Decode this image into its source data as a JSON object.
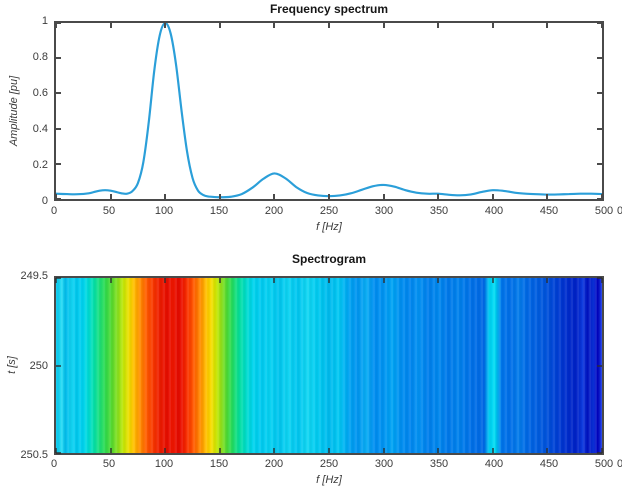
{
  "figure": {
    "background": "#ffffff",
    "axis_color": "#4a4a4a",
    "tick_label_color": "#3c3c3c",
    "title_color": "#161616"
  },
  "chart_data": [
    {
      "type": "line",
      "title": "Frequency spectrum",
      "xlabel": "f [Hz]",
      "ylabel": "Amplitude [pu]",
      "xlim": [
        0,
        500
      ],
      "ylim": [
        0,
        1
      ],
      "y_direction": "up",
      "grid": false,
      "legend": false,
      "xticks": [
        0,
        50,
        100,
        150,
        200,
        250,
        300,
        350,
        400,
        450,
        500
      ],
      "yticks": [
        0,
        0.2,
        0.4,
        0.6,
        0.8,
        1
      ],
      "line_color": "#2b9fd9",
      "edge_clipped_label": "0",
      "x": [
        0,
        10,
        20,
        30,
        35,
        40,
        45,
        50,
        55,
        60,
        65,
        70,
        75,
        80,
        85,
        90,
        95,
        100,
        105,
        110,
        115,
        120,
        125,
        130,
        135,
        140,
        150,
        160,
        170,
        180,
        190,
        200,
        210,
        220,
        230,
        240,
        250,
        260,
        270,
        280,
        290,
        300,
        310,
        320,
        330,
        340,
        350,
        360,
        370,
        380,
        390,
        400,
        410,
        420,
        430,
        440,
        450,
        460,
        470,
        480,
        490,
        500
      ],
      "y": [
        0.03,
        0.028,
        0.027,
        0.032,
        0.04,
        0.047,
        0.05,
        0.047,
        0.04,
        0.032,
        0.03,
        0.045,
        0.09,
        0.21,
        0.44,
        0.73,
        0.93,
        1.0,
        0.94,
        0.76,
        0.5,
        0.27,
        0.12,
        0.048,
        0.022,
        0.014,
        0.01,
        0.013,
        0.028,
        0.065,
        0.115,
        0.145,
        0.118,
        0.068,
        0.034,
        0.02,
        0.016,
        0.02,
        0.032,
        0.052,
        0.072,
        0.08,
        0.07,
        0.05,
        0.036,
        0.03,
        0.03,
        0.024,
        0.021,
        0.026,
        0.04,
        0.05,
        0.046,
        0.036,
        0.03,
        0.027,
        0.025,
        0.026,
        0.028,
        0.03,
        0.03,
        0.028
      ]
    },
    {
      "type": "heatmap",
      "title": "Spectrogram",
      "xlabel": "f [Hz]",
      "ylabel": "t [s]",
      "xlim": [
        0,
        500
      ],
      "ylim": [
        249.5,
        250.5
      ],
      "y_direction": "down",
      "colormap": "jet",
      "note": "vertical color bands constant over the whole time axis",
      "xticks": [
        0,
        50,
        100,
        150,
        200,
        250,
        300,
        350,
        400,
        450,
        500
      ],
      "yticks": [
        249.5,
        250,
        250.5
      ],
      "edge_clipped_label": "0",
      "bands": [
        {
          "f": 0,
          "color": "#00c6ee"
        },
        {
          "f": 5,
          "color": "#28dcf4"
        },
        {
          "f": 9,
          "color": "#00baea"
        },
        {
          "f": 14,
          "color": "#12d4f2"
        },
        {
          "f": 19,
          "color": "#00c8ee"
        },
        {
          "f": 25,
          "color": "#00d4f0"
        },
        {
          "f": 30,
          "color": "#00dcd2"
        },
        {
          "f": 35,
          "color": "#06e0a6"
        },
        {
          "f": 40,
          "color": "#1ce07a"
        },
        {
          "f": 45,
          "color": "#2eda4e"
        },
        {
          "f": 51,
          "color": "#55da30"
        },
        {
          "f": 57,
          "color": "#8ee01c"
        },
        {
          "f": 62,
          "color": "#c6e706"
        },
        {
          "f": 67,
          "color": "#f0dc00"
        },
        {
          "f": 71,
          "color": "#ffc000"
        },
        {
          "f": 75,
          "color": "#ff9e00"
        },
        {
          "f": 79,
          "color": "#ff7c00"
        },
        {
          "f": 83,
          "color": "#ff5a00"
        },
        {
          "f": 88,
          "color": "#f93c00"
        },
        {
          "f": 93,
          "color": "#f02400"
        },
        {
          "f": 98,
          "color": "#e91400"
        },
        {
          "f": 103,
          "color": "#e60c00"
        },
        {
          "f": 107,
          "color": "#f01800"
        },
        {
          "f": 111,
          "color": "#e30a00"
        },
        {
          "f": 115,
          "color": "#eb1000"
        },
        {
          "f": 119,
          "color": "#f62a00"
        },
        {
          "f": 124,
          "color": "#ff4a00"
        },
        {
          "f": 129,
          "color": "#ff7200"
        },
        {
          "f": 134,
          "color": "#ff9c00"
        },
        {
          "f": 138,
          "color": "#ffc400"
        },
        {
          "f": 142,
          "color": "#f8dc00"
        },
        {
          "f": 147,
          "color": "#c8e704"
        },
        {
          "f": 152,
          "color": "#8adf1e"
        },
        {
          "f": 157,
          "color": "#48da38"
        },
        {
          "f": 162,
          "color": "#20dc64"
        },
        {
          "f": 168,
          "color": "#04df9e"
        },
        {
          "f": 174,
          "color": "#00dcca"
        },
        {
          "f": 180,
          "color": "#00d4ec"
        },
        {
          "f": 188,
          "color": "#00caf0"
        },
        {
          "f": 196,
          "color": "#06d2f2"
        },
        {
          "f": 204,
          "color": "#00c4ee"
        },
        {
          "f": 212,
          "color": "#0ed4f2"
        },
        {
          "f": 221,
          "color": "#00c6f0"
        },
        {
          "f": 230,
          "color": "#12d6f2"
        },
        {
          "f": 240,
          "color": "#00caf0"
        },
        {
          "f": 250,
          "color": "#00baee"
        },
        {
          "f": 259,
          "color": "#02c8f2"
        },
        {
          "f": 268,
          "color": "#00a4f2"
        },
        {
          "f": 276,
          "color": "#0094f0"
        },
        {
          "f": 284,
          "color": "#0aaef4"
        },
        {
          "f": 292,
          "color": "#008cf0"
        },
        {
          "f": 300,
          "color": "#0094f2"
        },
        {
          "f": 308,
          "color": "#00a4f4"
        },
        {
          "f": 316,
          "color": "#008ef0"
        },
        {
          "f": 324,
          "color": "#0084ee"
        },
        {
          "f": 332,
          "color": "#0292f2"
        },
        {
          "f": 341,
          "color": "#007eec"
        },
        {
          "f": 350,
          "color": "#0088ee"
        },
        {
          "f": 359,
          "color": "#0078ea"
        },
        {
          "f": 368,
          "color": "#0082ec"
        },
        {
          "f": 378,
          "color": "#0072e8"
        },
        {
          "f": 386,
          "color": "#006ce6"
        },
        {
          "f": 392,
          "color": "#0066e4"
        },
        {
          "f": 397,
          "color": "#00d2f4"
        },
        {
          "f": 402,
          "color": "#00dcf2"
        },
        {
          "f": 408,
          "color": "#0074ea"
        },
        {
          "f": 416,
          "color": "#006ee8"
        },
        {
          "f": 424,
          "color": "#047cea"
        },
        {
          "f": 432,
          "color": "#0066e4"
        },
        {
          "f": 440,
          "color": "#005ee0"
        },
        {
          "f": 448,
          "color": "#0054dc"
        },
        {
          "f": 456,
          "color": "#0044d6"
        },
        {
          "f": 464,
          "color": "#0034d0"
        },
        {
          "f": 471,
          "color": "#0028ca"
        },
        {
          "f": 477,
          "color": "#0020c6"
        },
        {
          "f": 482,
          "color": "#0d3ce0"
        },
        {
          "f": 487,
          "color": "#0010be"
        },
        {
          "f": 492,
          "color": "#0a32da"
        },
        {
          "f": 496,
          "color": "#0000bc"
        },
        {
          "f": 500,
          "color": "#1c3ee8"
        }
      ]
    }
  ]
}
